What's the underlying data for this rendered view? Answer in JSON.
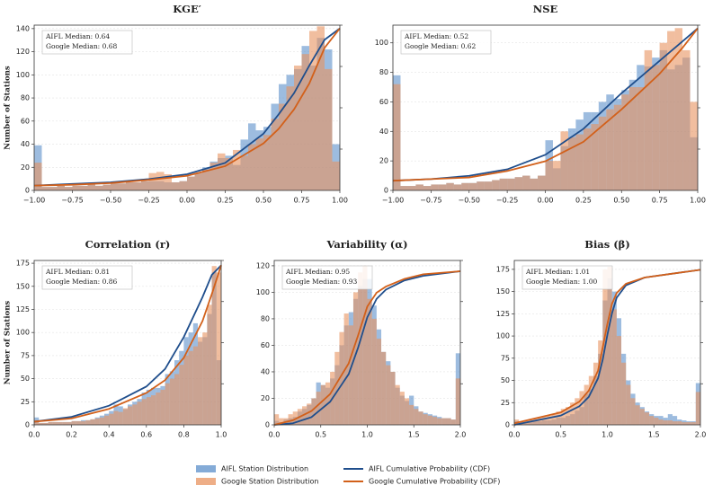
{
  "chart_data": [
    {
      "type": "histogram",
      "title": "KGE′",
      "ylabel": "Number of Stations",
      "annotations": [
        "AIFL Median: 0.64",
        "Google Median: 0.68"
      ],
      "bins": [
        -1,
        -0.95,
        -0.9,
        -0.85,
        -0.8,
        -0.75,
        -0.7,
        -0.65,
        -0.6,
        -0.55,
        -0.5,
        -0.45,
        -0.4,
        -0.35,
        -0.3,
        -0.25,
        -0.2,
        -0.15,
        -0.1,
        -0.05,
        0,
        0.05,
        0.1,
        0.15,
        0.2,
        0.25,
        0.3,
        0.35,
        0.4,
        0.45,
        0.5,
        0.55,
        0.6,
        0.65,
        0.7,
        0.75,
        0.8,
        0.85,
        0.9,
        0.95,
        1
      ],
      "xlim": [
        -1,
        1
      ],
      "xticks": [
        {
          "value": -1,
          "label": "−1.00"
        },
        {
          "value": -0.75,
          "label": "−0.75"
        },
        {
          "value": -0.5,
          "label": "−0.50"
        },
        {
          "value": -0.25,
          "label": "−0.25"
        },
        {
          "value": 0,
          "label": "0.00"
        },
        0.25,
        {
          "value": 0.5,
          "label": "0.50"
        },
        0.75,
        {
          "value": 1,
          "label": "1.00"
        }
      ],
      "ylim": [
        0,
        143
      ],
      "yticks": [
        0,
        20,
        40,
        60,
        80,
        100,
        120,
        140
      ],
      "y2lim": [
        0,
        1.02
      ],
      "grid": true,
      "series": [
        {
          "values": [
            39,
            3,
            3,
            4,
            3,
            4,
            4,
            5,
            4,
            5,
            6,
            6,
            7,
            7,
            8,
            8,
            8,
            7,
            7,
            8,
            12,
            15,
            20,
            25,
            28,
            30,
            22,
            44,
            58,
            52,
            55,
            75,
            92,
            100,
            105,
            125,
            108,
            132,
            122,
            40
          ]
        },
        {
          "values": [
            24,
            3,
            3,
            4,
            3,
            4,
            4,
            5,
            4,
            5,
            6,
            6,
            7,
            7,
            8,
            15,
            16,
            14,
            7,
            8,
            12,
            15,
            18,
            24,
            32,
            28,
            35,
            30,
            40,
            45,
            48,
            62,
            75,
            90,
            108,
            118,
            138,
            142,
            105,
            25
          ]
        },
        {
          "axis": "y2",
          "x": [
            -1,
            -0.75,
            -0.5,
            -0.25,
            0,
            0.25,
            0.5,
            0.6,
            0.7,
            0.8,
            0.9,
            1
          ],
          "values": [
            0.03,
            0.04,
            0.05,
            0.07,
            0.1,
            0.17,
            0.35,
            0.47,
            0.6,
            0.77,
            0.93,
            1
          ]
        },
        {
          "axis": "y2",
          "x": [
            -1,
            -0.75,
            -0.5,
            -0.25,
            0,
            0.25,
            0.5,
            0.6,
            0.7,
            0.8,
            0.9,
            1
          ],
          "values": [
            0.03,
            0.035,
            0.045,
            0.065,
            0.09,
            0.15,
            0.29,
            0.38,
            0.5,
            0.66,
            0.88,
            1
          ]
        }
      ]
    },
    {
      "type": "histogram",
      "title": "NSE",
      "annotations": [
        "AIFL Median: 0.52",
        "Google Median: 0.62"
      ],
      "bins": [
        -1,
        -0.95,
        -0.9,
        -0.85,
        -0.8,
        -0.75,
        -0.7,
        -0.65,
        -0.6,
        -0.55,
        -0.5,
        -0.45,
        -0.4,
        -0.35,
        -0.3,
        -0.25,
        -0.2,
        -0.15,
        -0.1,
        -0.05,
        0,
        0.05,
        0.1,
        0.15,
        0.2,
        0.25,
        0.3,
        0.35,
        0.4,
        0.45,
        0.5,
        0.55,
        0.6,
        0.65,
        0.7,
        0.75,
        0.8,
        0.85,
        0.9,
        0.95,
        1
      ],
      "xlim": [
        -1,
        1
      ],
      "xticks": [
        {
          "value": -1,
          "label": "−1.00"
        },
        {
          "value": -0.75,
          "label": "−0.75"
        },
        {
          "value": -0.5,
          "label": "−0.50"
        },
        {
          "value": -0.25,
          "label": "−0.25"
        },
        {
          "value": 0,
          "label": "0.00"
        },
        0.25,
        {
          "value": 0.5,
          "label": "0.50"
        },
        0.75,
        {
          "value": 1,
          "label": "1.00"
        }
      ],
      "ylim": [
        0,
        112
      ],
      "yticks": [
        0,
        20,
        40,
        60,
        80,
        100
      ],
      "y2lim": [
        0,
        1.02
      ],
      "grid": true,
      "series": [
        {
          "values": [
            78,
            3,
            3,
            4,
            3,
            4,
            4,
            5,
            4,
            5,
            5,
            6,
            6,
            7,
            8,
            8,
            9,
            10,
            8,
            10,
            34,
            15,
            30,
            42,
            48,
            53,
            53,
            60,
            65,
            62,
            68,
            75,
            85,
            84,
            90,
            95,
            82,
            85,
            90,
            36
          ]
        },
        {
          "values": [
            72,
            3,
            3,
            4,
            3,
            4,
            4,
            5,
            4,
            5,
            5,
            6,
            6,
            7,
            8,
            8,
            9,
            10,
            8,
            10,
            20,
            20,
            40,
            36,
            38,
            42,
            45,
            50,
            55,
            58,
            65,
            70,
            70,
            95,
            85,
            100,
            108,
            110,
            95,
            60
          ]
        },
        {
          "axis": "y2",
          "x": [
            -1,
            -0.75,
            -0.5,
            -0.25,
            0,
            0.25,
            0.5,
            0.75,
            0.9,
            1
          ],
          "values": [
            0.06,
            0.07,
            0.09,
            0.13,
            0.22,
            0.38,
            0.6,
            0.8,
            0.92,
            1
          ]
        },
        {
          "axis": "y2",
          "x": [
            -1,
            -0.75,
            -0.5,
            -0.25,
            0,
            0.25,
            0.5,
            0.75,
            0.9,
            1
          ],
          "values": [
            0.06,
            0.07,
            0.08,
            0.12,
            0.18,
            0.3,
            0.5,
            0.72,
            0.88,
            1
          ]
        }
      ]
    },
    {
      "type": "histogram",
      "title": "Correlation (r)",
      "ylabel": "Number of Stations",
      "annotations": [
        "AIFL Median: 0.81",
        "Google Median: 0.86"
      ],
      "bins": [
        0,
        0.025,
        0.05,
        0.075,
        0.1,
        0.125,
        0.15,
        0.175,
        0.2,
        0.225,
        0.25,
        0.275,
        0.3,
        0.325,
        0.35,
        0.375,
        0.4,
        0.425,
        0.45,
        0.475,
        0.5,
        0.525,
        0.55,
        0.575,
        0.6,
        0.625,
        0.65,
        0.675,
        0.7,
        0.725,
        0.75,
        0.775,
        0.8,
        0.825,
        0.85,
        0.875,
        0.9,
        0.925,
        0.95,
        0.975,
        1
      ],
      "xlim": [
        0,
        1
      ],
      "xticks": [
        {
          "value": 0,
          "label": "0.0"
        },
        0.2,
        0.4,
        0.6,
        0.8,
        {
          "value": 1,
          "label": "1.0"
        }
      ],
      "ylim": [
        0,
        178
      ],
      "yticks": [
        0,
        25,
        50,
        75,
        100,
        125,
        150,
        175
      ],
      "y2lim": [
        0,
        1.03
      ],
      "grid": true,
      "series": [
        {
          "values": [
            8,
            2,
            2,
            3,
            3,
            3,
            3,
            3,
            4,
            4,
            5,
            5,
            6,
            8,
            10,
            12,
            15,
            22,
            20,
            17,
            22,
            25,
            28,
            35,
            38,
            40,
            40,
            42,
            55,
            58,
            70,
            80,
            95,
            100,
            110,
            90,
            95,
            120,
            165,
            70
          ]
        },
        {
          "values": [
            5,
            2,
            2,
            3,
            3,
            3,
            3,
            3,
            4,
            4,
            4,
            5,
            6,
            7,
            8,
            10,
            12,
            15,
            14,
            18,
            20,
            22,
            25,
            28,
            30,
            32,
            35,
            38,
            45,
            50,
            55,
            65,
            75,
            80,
            85,
            95,
            100,
            130,
            172,
            165
          ]
        },
        {
          "axis": "y2",
          "x": [
            0,
            0.2,
            0.4,
            0.6,
            0.7,
            0.8,
            0.9,
            0.95,
            1
          ],
          "values": [
            0.02,
            0.05,
            0.12,
            0.24,
            0.35,
            0.55,
            0.8,
            0.94,
            1
          ]
        },
        {
          "axis": "y2",
          "x": [
            0,
            0.2,
            0.4,
            0.6,
            0.7,
            0.8,
            0.9,
            0.95,
            1
          ],
          "values": [
            0.02,
            0.04,
            0.1,
            0.2,
            0.28,
            0.42,
            0.65,
            0.82,
            1
          ]
        }
      ]
    },
    {
      "type": "histogram",
      "title": "Variability (α)",
      "annotations": [
        "AIFL Median: 0.95",
        "Google Median: 0.93"
      ],
      "bins": [
        0,
        0.05,
        0.1,
        0.15,
        0.2,
        0.25,
        0.3,
        0.35,
        0.4,
        0.45,
        0.5,
        0.55,
        0.6,
        0.65,
        0.7,
        0.75,
        0.8,
        0.85,
        0.9,
        0.95,
        1,
        1.05,
        1.1,
        1.15,
        1.2,
        1.25,
        1.3,
        1.35,
        1.4,
        1.45,
        1.5,
        1.55,
        1.6,
        1.65,
        1.7,
        1.75,
        1.8,
        1.85,
        1.9,
        1.95,
        2
      ],
      "xlim": [
        0,
        2
      ],
      "xticks": [
        {
          "value": 0,
          "label": "0.0"
        },
        0.5,
        {
          "value": 1,
          "label": "1.0"
        },
        1.5,
        {
          "value": 2,
          "label": "2.0"
        }
      ],
      "ylim": [
        0,
        124
      ],
      "yticks": [
        0,
        20,
        40,
        60,
        80,
        100,
        120
      ],
      "y2lim": [
        0,
        1.07
      ],
      "grid": true,
      "series": [
        {
          "values": [
            3,
            2,
            4,
            5,
            6,
            10,
            12,
            15,
            20,
            32,
            30,
            28,
            35,
            45,
            60,
            75,
            85,
            95,
            105,
            110,
            110,
            90,
            72,
            55,
            48,
            40,
            28,
            22,
            18,
            22,
            14,
            10,
            9,
            8,
            7,
            6,
            5,
            5,
            4,
            54
          ]
        },
        {
          "values": [
            8,
            5,
            5,
            8,
            10,
            12,
            14,
            16,
            20,
            25,
            30,
            32,
            40,
            55,
            70,
            84,
            75,
            100,
            115,
            120,
            95,
            80,
            65,
            55,
            45,
            40,
            30,
            25,
            20,
            15,
            12,
            10,
            8,
            7,
            6,
            5,
            5,
            5,
            4,
            35
          ]
        },
        {
          "axis": "y2",
          "x": [
            0,
            0.2,
            0.4,
            0.6,
            0.8,
            0.9,
            1,
            1.1,
            1.2,
            1.4,
            1.6,
            2
          ],
          "values": [
            0,
            0.01,
            0.05,
            0.15,
            0.33,
            0.5,
            0.7,
            0.82,
            0.88,
            0.94,
            0.97,
            1
          ]
        },
        {
          "axis": "y2",
          "x": [
            0,
            0.2,
            0.4,
            0.6,
            0.8,
            0.9,
            1,
            1.1,
            1.2,
            1.4,
            1.6,
            2
          ],
          "values": [
            0,
            0.03,
            0.09,
            0.2,
            0.4,
            0.58,
            0.77,
            0.86,
            0.9,
            0.95,
            0.98,
            1
          ]
        }
      ]
    },
    {
      "type": "histogram",
      "title": "Bias (β)",
      "annotations": [
        "AIFL Median: 1.01",
        "Google Median: 1.00"
      ],
      "bins": [
        0,
        0.05,
        0.1,
        0.15,
        0.2,
        0.25,
        0.3,
        0.35,
        0.4,
        0.45,
        0.5,
        0.55,
        0.6,
        0.65,
        0.7,
        0.75,
        0.8,
        0.85,
        0.9,
        0.95,
        1,
        1.05,
        1.1,
        1.15,
        1.2,
        1.25,
        1.3,
        1.35,
        1.4,
        1.45,
        1.5,
        1.55,
        1.6,
        1.65,
        1.7,
        1.75,
        1.8,
        1.85,
        1.9,
        1.95,
        2
      ],
      "xlim": [
        0,
        2
      ],
      "xticks": [
        {
          "value": 0,
          "label": "0.0"
        },
        0.5,
        {
          "value": 1,
          "label": "1.0"
        },
        1.5,
        {
          "value": 2,
          "label": "2.0"
        }
      ],
      "ylim": [
        0,
        185
      ],
      "yticks": [
        0,
        25,
        50,
        75,
        100,
        125,
        150,
        175
      ],
      "y2lim": [
        0,
        1.06
      ],
      "grid": true,
      "series": [
        {
          "values": [
            4,
            2,
            3,
            3,
            4,
            4,
            5,
            5,
            6,
            8,
            8,
            10,
            12,
            16,
            20,
            35,
            40,
            55,
            80,
            140,
            165,
            150,
            120,
            80,
            50,
            35,
            25,
            20,
            15,
            12,
            10,
            10,
            8,
            12,
            10,
            6,
            5,
            4,
            4,
            47
          ]
        },
        {
          "values": [
            6,
            4,
            5,
            6,
            7,
            8,
            9,
            10,
            12,
            15,
            18,
            20,
            25,
            30,
            38,
            45,
            55,
            70,
            95,
            175,
            178,
            130,
            100,
            70,
            45,
            30,
            22,
            18,
            14,
            10,
            8,
            6,
            5,
            5,
            4,
            4,
            3,
            3,
            3,
            37
          ]
        },
        {
          "axis": "y2",
          "x": [
            0,
            0.5,
            0.7,
            0.8,
            0.9,
            0.95,
            1,
            1.05,
            1.1,
            1.2,
            1.4,
            2
          ],
          "values": [
            0,
            0.06,
            0.12,
            0.18,
            0.3,
            0.42,
            0.58,
            0.72,
            0.82,
            0.9,
            0.95,
            1
          ]
        },
        {
          "axis": "y2",
          "x": [
            0,
            0.5,
            0.7,
            0.8,
            0.9,
            0.95,
            1,
            1.05,
            1.1,
            1.2,
            1.4,
            2
          ],
          "values": [
            0.01,
            0.08,
            0.15,
            0.22,
            0.35,
            0.5,
            0.65,
            0.78,
            0.85,
            0.91,
            0.95,
            1
          ]
        }
      ]
    }
  ],
  "legend": {
    "entries": [
      {
        "name": "AIFL Station Distribution",
        "color": "#5b8fc9",
        "kind": "bar"
      },
      {
        "name": "Google Station Distribution",
        "color": "#e8935f",
        "kind": "bar"
      },
      {
        "name": "AIFL Cumulative Probability (CDF)",
        "color": "#1f4e8c",
        "kind": "line"
      },
      {
        "name": "Google Cumulative Probability (CDF)",
        "color": "#d2601a",
        "kind": "line"
      }
    ]
  }
}
